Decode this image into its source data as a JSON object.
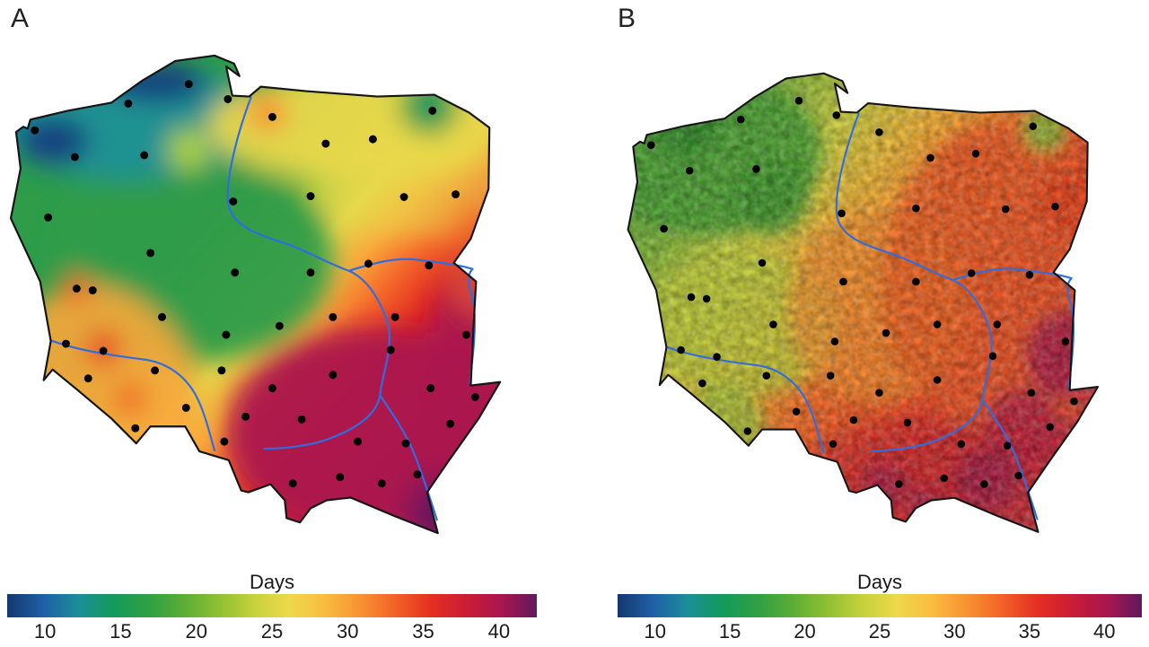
{
  "figure": {
    "panel_a": {
      "label": "A"
    },
    "panel_b": {
      "label": "B"
    },
    "colorbar": {
      "title": "Days",
      "ticks": [
        "10",
        "15",
        "20",
        "25",
        "30",
        "35",
        "40"
      ],
      "value_range": [
        10,
        40
      ],
      "colors": [
        "#14386e",
        "#1f5fa6",
        "#1b8e99",
        "#149a5a",
        "#2fa044",
        "#5bad35",
        "#8fc033",
        "#c6d13d",
        "#eed94a",
        "#f9bc3f",
        "#f79232",
        "#f26227",
        "#e42f21",
        "#cb1c35",
        "#a9164f",
        "#5f195e"
      ]
    },
    "map": {
      "region": "Poland",
      "station_color": "#000000",
      "river_color": "#2f6de0",
      "border_color": "#151515",
      "stations": [
        [
          140,
          60
        ],
        [
          208,
          38
        ],
        [
          252,
          55
        ],
        [
          302,
          75
        ],
        [
          362,
          105
        ],
        [
          415,
          100
        ],
        [
          482,
          68
        ],
        [
          35,
          90
        ],
        [
          80,
          120
        ],
        [
          158,
          118
        ],
        [
          258,
          170
        ],
        [
          345,
          164
        ],
        [
          450,
          165
        ],
        [
          508,
          162
        ],
        [
          50,
          188
        ],
        [
          165,
          228
        ],
        [
          260,
          250
        ],
        [
          345,
          250
        ],
        [
          410,
          240
        ],
        [
          478,
          242
        ],
        [
          100,
          270
        ],
        [
          178,
          300
        ],
        [
          250,
          320
        ],
        [
          310,
          310
        ],
        [
          370,
          300
        ],
        [
          440,
          300
        ],
        [
          520,
          320
        ],
        [
          70,
          330
        ],
        [
          112,
          338
        ],
        [
          170,
          360
        ],
        [
          245,
          360
        ],
        [
          302,
          380
        ],
        [
          370,
          365
        ],
        [
          435,
          337
        ],
        [
          480,
          380
        ],
        [
          530,
          390
        ],
        [
          95,
          369
        ],
        [
          148,
          425
        ],
        [
          205,
          402
        ],
        [
          272,
          412
        ],
        [
          335,
          415
        ],
        [
          398,
          440
        ],
        [
          452,
          442
        ],
        [
          502,
          420
        ],
        [
          378,
          480
        ],
        [
          325,
          487
        ],
        [
          248,
          440
        ],
        [
          425,
          487
        ],
        [
          465,
          477
        ],
        [
          82,
          268
        ]
      ]
    }
  }
}
